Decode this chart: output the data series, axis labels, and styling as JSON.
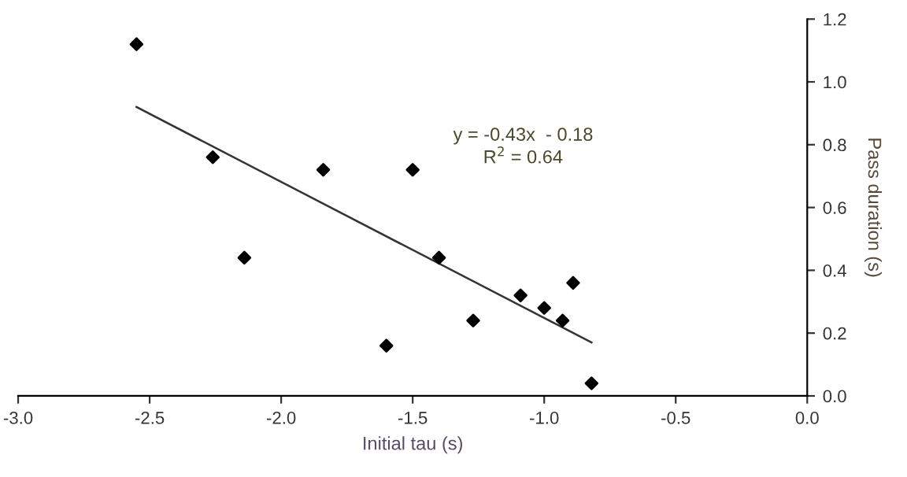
{
  "chart_data": {
    "type": "scatter",
    "xlabel": "Initial tau (s)",
    "ylabel": "Pass duration (s)",
    "xlim": [
      -3.0,
      0.0
    ],
    "xticks": [
      {
        "value": -3.0,
        "label": "-3.0"
      },
      {
        "value": -2.5,
        "label": "-2.5"
      },
      {
        "value": -2.0,
        "label": "-2.0"
      },
      {
        "value": -1.5,
        "label": "-1.5"
      },
      {
        "value": -1.0,
        "label": "-1.0"
      },
      {
        "value": -0.5,
        "label": "-0.5"
      },
      {
        "value": 0.0,
        "label": "0.0"
      }
    ],
    "ylim": [
      0.0,
      1.2
    ],
    "yticks": [
      {
        "value": 0.0,
        "label": "0.0"
      },
      {
        "value": 0.2,
        "label": "0.2"
      },
      {
        "value": 0.4,
        "label": "0.4"
      },
      {
        "value": 0.6,
        "label": "0.6"
      },
      {
        "value": 0.8,
        "label": "0.8"
      },
      {
        "value": 1.0,
        "label": "1.0"
      },
      {
        "value": 1.2,
        "label": "1.2"
      }
    ],
    "grid": false,
    "legend": false,
    "series": [
      {
        "marker": "diamond",
        "color": "#000000",
        "x": [
          -2.55,
          -2.26,
          -2.14,
          -1.84,
          -1.5,
          -1.4,
          -1.6,
          -1.27,
          -1.09,
          -1.0,
          -0.93,
          -0.89,
          -0.82
        ],
        "values": [
          1.12,
          0.76,
          0.44,
          0.72,
          0.72,
          0.44,
          0.16,
          0.24,
          0.32,
          0.28,
          0.24,
          0.36,
          0.04
        ]
      },
      {
        "type": "line",
        "marker": "none",
        "color": "#333333",
        "line_style": "solid",
        "x": [
          -2.55,
          -0.82
        ],
        "values": [
          0.92,
          0.17
        ]
      }
    ],
    "annotations": [
      "y = -0.43x  - 0.18\nR$^{2}$ = 0.64"
    ]
  }
}
